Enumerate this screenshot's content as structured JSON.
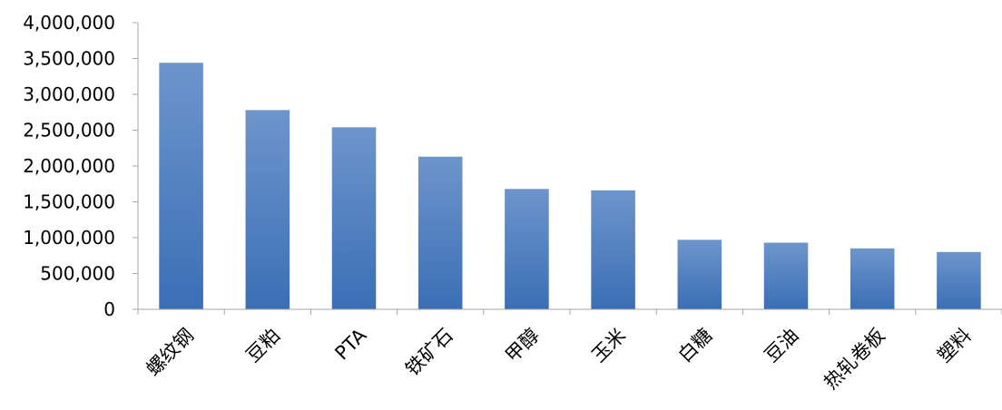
{
  "chart_data": {
    "type": "bar",
    "title": "",
    "xlabel": "",
    "ylabel": "",
    "categories": [
      "螺纹钢",
      "豆粕",
      "PTA",
      "铁矿石",
      "甲醇",
      "玉米",
      "白糖",
      "豆油",
      "热轧卷板",
      "塑料"
    ],
    "values": [
      3440000,
      2780000,
      2540000,
      2130000,
      1680000,
      1660000,
      970000,
      930000,
      850000,
      800000
    ],
    "ylim": [
      0,
      4000000
    ],
    "yticks": [
      0,
      500000,
      1000000,
      1500000,
      2000000,
      2500000,
      3000000,
      3500000,
      4000000
    ],
    "ytick_labels": [
      "0",
      "500,000",
      "1,000,000",
      "1,500,000",
      "2,000,000",
      "2,500,000",
      "3,000,000",
      "3,500,000",
      "4,000,000"
    ],
    "grid": false,
    "legend": "none",
    "bar_color_top": "#6d95cc",
    "bar_color_bottom": "#3a6fb5",
    "axis_color": "#a6a6a6"
  }
}
